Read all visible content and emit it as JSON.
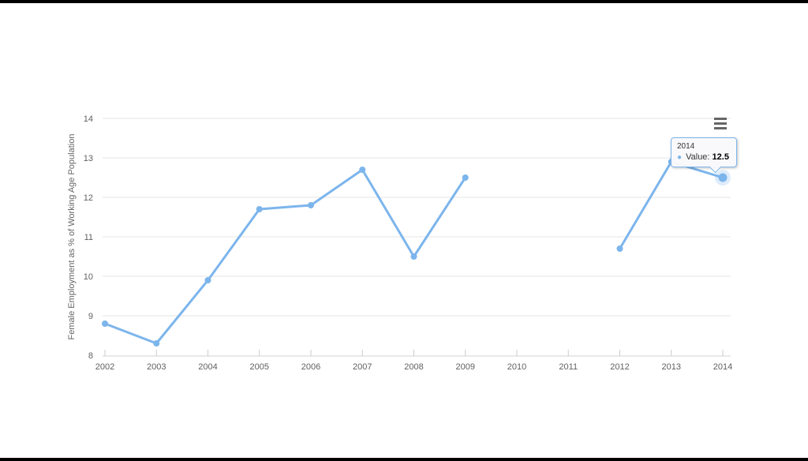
{
  "page": {
    "background": "#ffffff",
    "edge_bar_color": "#000000"
  },
  "chart": {
    "tooltip": {
      "header": "2014",
      "label": "Value:",
      "value": "12.5",
      "marker_icon": "series-dot-icon"
    },
    "export_button": {
      "icon": "hamburger-icon"
    },
    "colors": {
      "series": "#7cb5ec",
      "halo": "rgba(124,181,236,0.25)",
      "gridline": "#e6e6e6",
      "axis_line": "#d0d0d0",
      "tick": "#cccccc",
      "axis_label": "#606060",
      "axis_title": "#666666",
      "tooltip_border": "#7cb5ec"
    }
  },
  "chart_data": {
    "type": "line",
    "title": "",
    "xlabel": "",
    "ylabel": "Female Employment as % of Working Age Population",
    "x": [
      2002,
      2003,
      2004,
      2005,
      2006,
      2007,
      2008,
      2009,
      2010,
      2011,
      2012,
      2013,
      2014
    ],
    "values": [
      8.8,
      8.3,
      9.9,
      11.7,
      11.8,
      12.7,
      10.5,
      12.5,
      null,
      null,
      10.7,
      12.9,
      12.5
    ],
    "ylim": [
      8,
      14
    ],
    "y_ticks": [
      8,
      9,
      10,
      11,
      12,
      13,
      14
    ],
    "grid": true,
    "legend": "none",
    "hovered_point": {
      "x": 2014,
      "value": 12.5
    }
  }
}
